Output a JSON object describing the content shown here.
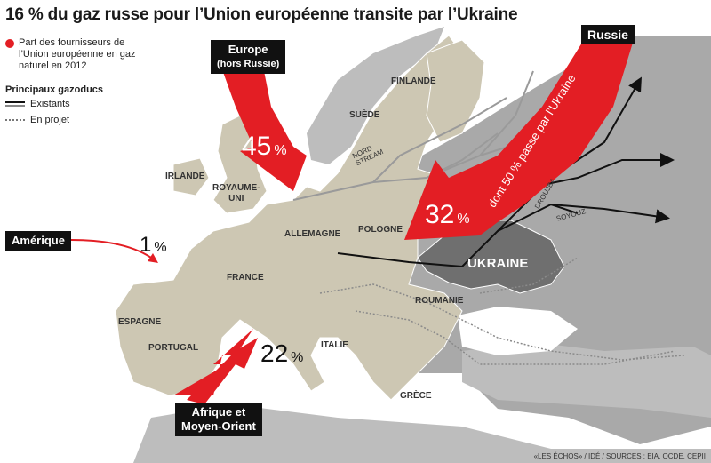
{
  "title": "16 % du gaz russe pour l’Union européenne transite par l’Ukraine",
  "legend": {
    "share_label": "Part des fournisseurs de l’Union européenne en gaz naturel en 2012",
    "pipelines_heading": "Principaux gazoducs",
    "existing": "Existants",
    "planned": "En projet"
  },
  "sources": {
    "europe": {
      "label_line1": "Europe",
      "label_line2": "(hors Russie)",
      "value": "45",
      "unit": "%"
    },
    "russia": {
      "label": "Russie",
      "value": "32",
      "unit": "%",
      "note": "dont 50 % passe par l’Ukraine"
    },
    "america": {
      "label": "Amérique",
      "value": "1",
      "unit": "%"
    },
    "africa": {
      "label_line1": "Afrique et",
      "label_line2": "Moyen-Orient",
      "value": "22",
      "unit": "%"
    }
  },
  "countries": {
    "finlande": "FINLANDE",
    "suede": "SUÈDE",
    "irlande": "IRLANDE",
    "royaume_uni_1": "ROYAUME-",
    "royaume_uni_2": "UNI",
    "allemagne": "ALLEMAGNE",
    "pologne": "POLOGNE",
    "france": "FRANCE",
    "espagne": "ESPAGNE",
    "portugal": "PORTUGAL",
    "italie": "ITALIE",
    "roumanie": "ROUMANIE",
    "grece": "GRÈCE",
    "ukraine": "UKRAINE"
  },
  "pipelines": {
    "nord_stream_1": "NORD",
    "nord_stream_2": "STREAM",
    "droujba": "DROUJBA",
    "soyouz": "SOYOUZ"
  },
  "source_line": "«LES ÉCHOS» / IDÉ / SOURCES : EIA, OCDE, CEPII",
  "colors": {
    "eu_land": "#cdc7b3",
    "other_land": "#a9a9a9",
    "sea": "#ffffff",
    "ukraine": "#6f6f6f",
    "arrow": "#e31e24",
    "pipeline_existing": "#111111",
    "pipeline_other": "#9a9a9a"
  }
}
